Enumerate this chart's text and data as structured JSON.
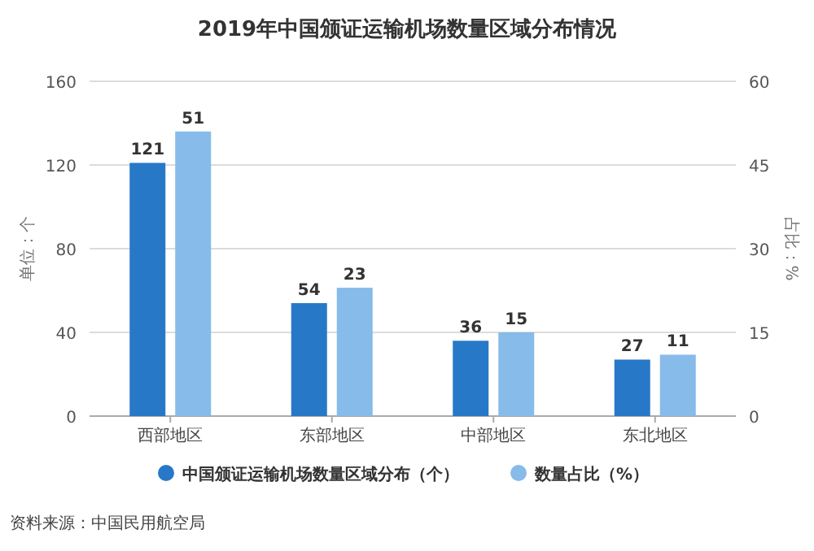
{
  "chart_data": {
    "type": "bar",
    "title": "2019年中国颁证运输机场数量区域分布情况",
    "categories": [
      "西部地区",
      "东部地区",
      "中部地区",
      "东北地区"
    ],
    "series": [
      {
        "name": "中国颁证运输机场数量区域分布（个）",
        "color": "#2878c8",
        "values": [
          121,
          54,
          36,
          27
        ]
      },
      {
        "name": "数量占比（%）",
        "color": "#86bbea",
        "values": [
          51,
          23,
          15,
          11
        ],
        "axis": "y2"
      }
    ],
    "ylabel": "单位：个",
    "y2label": "占比：%",
    "ylim": [
      0,
      160
    ],
    "yticks": [
      0,
      40,
      80,
      120,
      160
    ],
    "y2lim": [
      0,
      60
    ],
    "y2ticks": [
      0,
      15,
      30,
      45,
      60
    ],
    "grid": "y",
    "legend": "bottom",
    "data_labels": true,
    "annotations": [
      "资料来源：中国民用航空局"
    ]
  }
}
